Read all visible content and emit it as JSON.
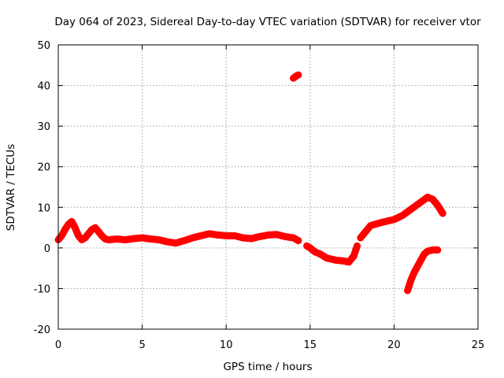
{
  "chart_data": {
    "type": "scatter",
    "title": "Day 064 of 2023, Sidereal Day-to-day VTEC variation (SDTVAR) for receiver vtor",
    "xlabel": "GPS time / hours",
    "ylabel": "SDTVAR / TECUs",
    "xlim": [
      0,
      25
    ],
    "ylim": [
      -20,
      50
    ],
    "xticks": [
      0,
      5,
      10,
      15,
      20,
      25
    ],
    "yticks": [
      -20,
      -10,
      0,
      10,
      20,
      30,
      40,
      50
    ],
    "grid": true,
    "legend": "none",
    "series_color": "#ff0000",
    "series": [
      {
        "name": "main trace",
        "x": [
          0.0,
          0.2,
          0.4,
          0.6,
          0.8,
          1.0,
          1.2,
          1.4,
          1.6,
          1.8,
          2.0,
          2.2,
          2.4,
          2.6,
          2.8,
          3.0,
          3.5,
          4.0,
          4.5,
          5.0,
          5.5,
          6.0,
          6.5,
          7.0,
          7.5,
          8.0,
          8.5,
          9.0,
          9.5,
          10.0,
          10.5,
          11.0,
          11.5,
          12.0,
          12.5,
          13.0,
          13.5,
          14.0,
          14.3
        ],
        "y": [
          2.0,
          3.0,
          4.5,
          5.8,
          6.5,
          5.0,
          3.0,
          2.0,
          2.5,
          3.5,
          4.5,
          5.0,
          4.0,
          3.0,
          2.2,
          2.0,
          2.2,
          2.0,
          2.3,
          2.5,
          2.2,
          2.0,
          1.5,
          1.2,
          1.8,
          2.5,
          3.0,
          3.5,
          3.2,
          3.0,
          3.0,
          2.5,
          2.3,
          2.8,
          3.2,
          3.3,
          2.8,
          2.5,
          1.8
        ]
      },
      {
        "name": "isolated cluster",
        "x": [
          14.0,
          14.1,
          14.2,
          14.3
        ],
        "y": [
          41.8,
          42.1,
          42.4,
          42.6
        ]
      },
      {
        "name": "post-gap segment",
        "x": [
          14.8,
          15.0,
          15.3,
          15.6,
          16.0,
          16.5,
          17.0,
          17.3,
          17.6,
          17.8
        ],
        "y": [
          0.5,
          0.0,
          -1.0,
          -1.5,
          -2.5,
          -3.0,
          -3.2,
          -3.5,
          -2.0,
          0.5
        ]
      },
      {
        "name": "rising segment",
        "x": [
          18.0,
          18.3,
          18.6,
          19.0,
          19.5,
          20.0,
          20.5,
          21.0,
          21.5,
          22.0,
          22.3,
          22.6,
          22.9
        ],
        "y": [
          2.5,
          4.0,
          5.5,
          6.0,
          6.5,
          7.0,
          8.0,
          9.5,
          11.0,
          12.5,
          12.0,
          10.5,
          8.5
        ]
      },
      {
        "name": "lower branch",
        "x": [
          20.8,
          21.0,
          21.2,
          21.4,
          21.6,
          21.8,
          22.0,
          22.3,
          22.6
        ],
        "y": [
          -10.5,
          -8.0,
          -6.0,
          -4.5,
          -3.0,
          -1.5,
          -0.8,
          -0.5,
          -0.5
        ]
      }
    ]
  }
}
